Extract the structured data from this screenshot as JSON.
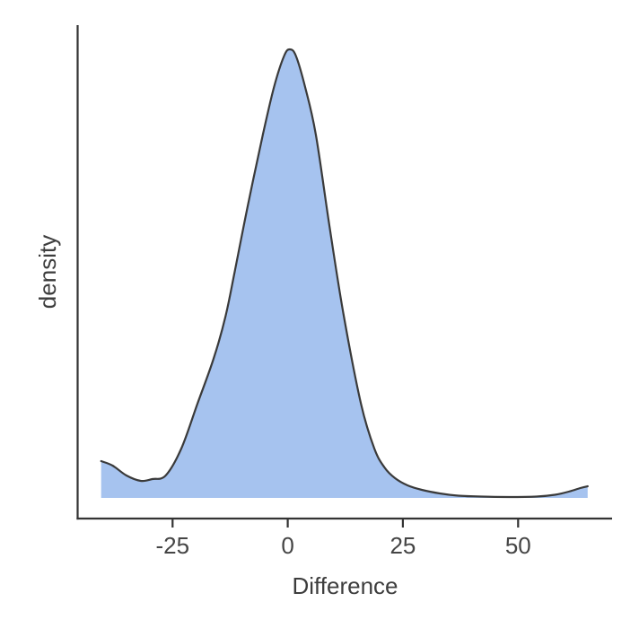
{
  "chart_data": {
    "type": "area",
    "subtype": "density",
    "title": "",
    "xlabel": "Difference",
    "ylabel": "density",
    "grid": "off",
    "legend": "none",
    "x_domain": [
      -45.6,
      70.4
    ],
    "y_domain": [
      -0.046,
      1.054
    ],
    "x_ticks": [
      {
        "value": -25,
        "label": "-25"
      },
      {
        "value": 0,
        "label": "0"
      },
      {
        "value": 25,
        "label": "25"
      },
      {
        "value": 50,
        "label": "50"
      }
    ],
    "y_ticks": [],
    "series": [
      {
        "name": "density",
        "x": [
          -40.5,
          -38,
          -35,
          -31.9,
          -29.4,
          -26.5,
          -23.1,
          -19.6,
          -16.1,
          -13.5,
          -11.5,
          -8.5,
          -5.4,
          -3,
          -0.8,
          0.45,
          1.8,
          3.8,
          6.1,
          9,
          12.1,
          15.9,
          18.8,
          21,
          23.3,
          26,
          29.1,
          33,
          37,
          42,
          48,
          54,
          58,
          61,
          63.5,
          65.1
        ],
        "y": [
          0.082,
          0.072,
          0.05,
          0.038,
          0.042,
          0.05,
          0.11,
          0.21,
          0.31,
          0.405,
          0.505,
          0.66,
          0.81,
          0.915,
          0.985,
          1,
          0.985,
          0.915,
          0.81,
          0.61,
          0.41,
          0.21,
          0.11,
          0.068,
          0.044,
          0.028,
          0.018,
          0.01,
          0.005,
          0.003,
          0.002,
          0.003,
          0.007,
          0.014,
          0.022,
          0.026
        ]
      }
    ],
    "colors": {
      "fill": "#a6c3ef",
      "line": "#3a3a3a",
      "axis": "#333333",
      "tick_text": "#454545",
      "title_text": "#3d3d3d",
      "background": "#ffffff"
    }
  }
}
